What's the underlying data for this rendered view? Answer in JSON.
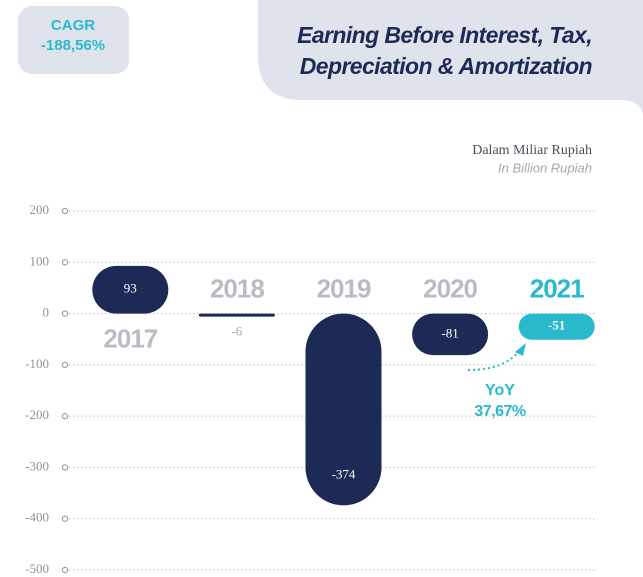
{
  "chart_data": {
    "type": "bar",
    "title": "Earning Before Interest, Tax,",
    "title_line2": "Depreciation & Amortization",
    "subtitle": "Dalam Miliar Rupiah",
    "subtitle_en": "In Billion Rupiah",
    "cagr_label": "CAGR",
    "cagr_value": "-188,56%",
    "yoy_label": "YoY",
    "yoy_value": "37,67%",
    "categories": [
      "2017",
      "2018",
      "2019",
      "2020",
      "2021"
    ],
    "values": [
      93,
      -6,
      -374,
      -81,
      -51
    ],
    "colors": [
      "#1e2a56",
      "#1e2a56",
      "#1e2a56",
      "#1e2a56",
      "#29b9cc"
    ],
    "ylim": [
      -500,
      200
    ],
    "yticks": [
      200,
      100,
      0,
      -100,
      -200,
      -300,
      -400,
      -500
    ],
    "grid": true
  }
}
